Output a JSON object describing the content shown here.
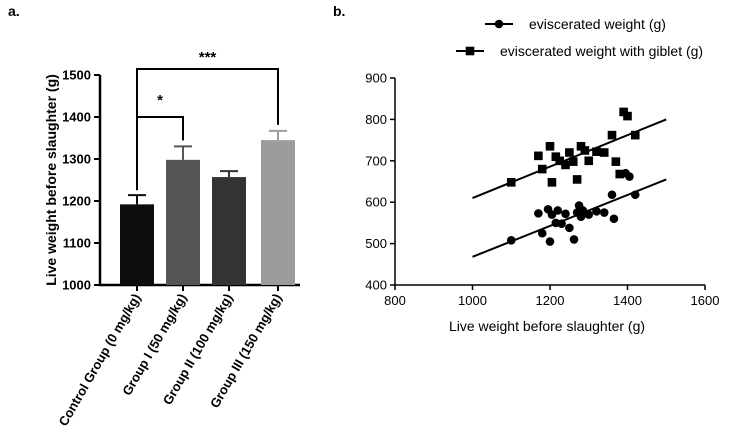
{
  "chart_data": [
    {
      "panel_label": "a.",
      "type": "bar",
      "ylabel": "Live weight before slaughter (g)",
      "ylim": [
        1000,
        1500
      ],
      "yticks": [
        "1000",
        "1100",
        "1200",
        "1300",
        "1400",
        "1500"
      ],
      "categories": [
        "Control Group (0 mg/kg)",
        "Group I (50 mg/kg)",
        "Group II (100 mg/kg)",
        "Group III (150 mg/kg)"
      ],
      "values": [
        1192,
        1298,
        1257,
        1345
      ],
      "errors": [
        22,
        32,
        14,
        22
      ],
      "bar_colors": [
        "#0d0d0d",
        "#555555",
        "#333333",
        "#9c9c9c"
      ],
      "significance": [
        {
          "label": "*",
          "from": 0,
          "to": 1
        },
        {
          "label": "***",
          "from": 0,
          "to": 3
        }
      ]
    },
    {
      "panel_label": "b.",
      "type": "scatter",
      "xlabel": "Live weight before slaughter (g)",
      "ylabel": "",
      "xlim": [
        800,
        1600
      ],
      "ylim": [
        400,
        900
      ],
      "xticks": [
        "800",
        "1000",
        "1200",
        "1400",
        "1600"
      ],
      "yticks": [
        "400",
        "500",
        "600",
        "700",
        "800",
        "900"
      ],
      "series": [
        {
          "name": "eviscerated weight (g)",
          "marker": "circle",
          "points": [
            [
              1100,
              508
            ],
            [
              1170,
              573
            ],
            [
              1180,
              525
            ],
            [
              1195,
              583
            ],
            [
              1200,
              505
            ],
            [
              1205,
              570
            ],
            [
              1215,
              550
            ],
            [
              1220,
              580
            ],
            [
              1230,
              548
            ],
            [
              1240,
              572
            ],
            [
              1250,
              538
            ],
            [
              1262,
              510
            ],
            [
              1270,
              575
            ],
            [
              1275,
              592
            ],
            [
              1280,
              565
            ],
            [
              1285,
              580
            ],
            [
              1300,
              570
            ],
            [
              1320,
              578
            ],
            [
              1340,
              575
            ],
            [
              1360,
              618
            ],
            [
              1365,
              560
            ],
            [
              1395,
              670
            ],
            [
              1405,
              662
            ],
            [
              1420,
              618
            ]
          ],
          "fit": [
            [
              1000,
              468
            ],
            [
              1500,
              655
            ]
          ]
        },
        {
          "name": "eviscerated weight with giblet (g)",
          "marker": "square",
          "points": [
            [
              1100,
              648
            ],
            [
              1170,
              712
            ],
            [
              1180,
              680
            ],
            [
              1200,
              735
            ],
            [
              1205,
              648
            ],
            [
              1215,
              710
            ],
            [
              1225,
              700
            ],
            [
              1240,
              690
            ],
            [
              1250,
              720
            ],
            [
              1260,
              698
            ],
            [
              1270,
              655
            ],
            [
              1280,
              735
            ],
            [
              1290,
              725
            ],
            [
              1300,
              700
            ],
            [
              1320,
              722
            ],
            [
              1340,
              720
            ],
            [
              1360,
              762
            ],
            [
              1370,
              698
            ],
            [
              1380,
              668
            ],
            [
              1390,
              818
            ],
            [
              1400,
              808
            ],
            [
              1420,
              762
            ]
          ],
          "fit": [
            [
              1000,
              610
            ],
            [
              1500,
              800
            ]
          ]
        }
      ]
    }
  ]
}
